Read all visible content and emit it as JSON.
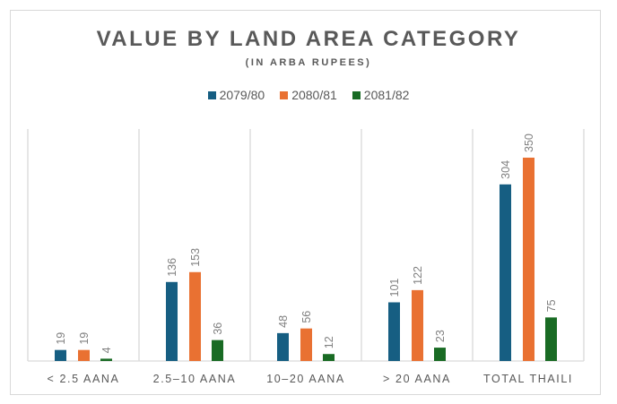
{
  "chart_data": {
    "type": "bar",
    "title": "VALUE BY LAND AREA CATEGORY",
    "subtitle": "(IN ARBA RUPEES)",
    "xlabel": "",
    "ylabel": "",
    "categories": [
      "< 2.5 AANA",
      "2.5–10 AANA",
      "10–20 AANA",
      "> 20 AANA",
      "TOTAL THAILI"
    ],
    "series": [
      {
        "name": "2079/80",
        "color": "#165e82",
        "values": [
          19,
          136,
          48,
          101,
          304
        ]
      },
      {
        "name": "2080/81",
        "color": "#e97132",
        "values": [
          19,
          153,
          56,
          122,
          350
        ]
      },
      {
        "name": "2081/82",
        "color": "#196b24",
        "values": [
          4,
          36,
          12,
          23,
          75
        ]
      }
    ],
    "ylim": [
      0,
      400
    ],
    "grid": false,
    "legend_position": "top",
    "data_labels": true
  }
}
